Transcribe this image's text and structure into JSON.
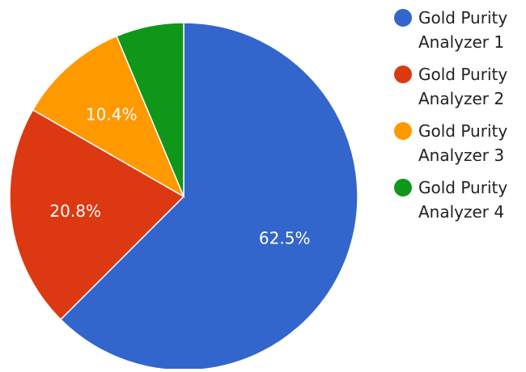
{
  "chart_data": {
    "type": "pie",
    "title": "",
    "series": [
      {
        "name": "",
        "values": [
          {
            "category": "Gold Purity Analyzer 1",
            "value": 62.5,
            "label": "62.5%",
            "color": "#3366cc"
          },
          {
            "category": "Gold Purity Analyzer 2",
            "value": 20.8,
            "label": "20.8%",
            "color": "#dc3912"
          },
          {
            "category": "Gold Purity Analyzer 3",
            "value": 10.4,
            "label": "10.4%",
            "color": "#ff9900"
          },
          {
            "category": "Gold Purity Analyzer 4",
            "value": 6.3,
            "label": "",
            "color": "#109618"
          }
        ]
      }
    ],
    "legend": {
      "position": "right",
      "entries": [
        {
          "line1": "Gold Purity",
          "line2": "Analyzer 1",
          "color": "#3366cc"
        },
        {
          "line1": "Gold Purity",
          "line2": "Analyzer 2",
          "color": "#dc3912"
        },
        {
          "line1": "Gold Purity",
          "line2": "Analyzer 3",
          "color": "#ff9900"
        },
        {
          "line1": "Gold Purity",
          "line2": "Analyzer 4",
          "color": "#109618"
        }
      ]
    }
  }
}
